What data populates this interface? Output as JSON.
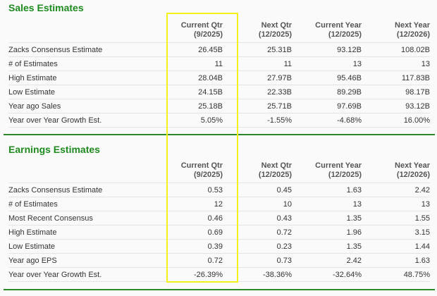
{
  "columns": [
    {
      "label": "Current Qtr",
      "period": "(9/2025)"
    },
    {
      "label": "Next Qtr",
      "period": "(12/2025)"
    },
    {
      "label": "Current Year",
      "period": "(12/2025)"
    },
    {
      "label": "Next Year",
      "period": "(12/2026)"
    }
  ],
  "sales": {
    "title": "Sales Estimates",
    "rows": [
      {
        "label": "Zacks Consensus Estimate",
        "values": [
          "26.45B",
          "25.31B",
          "93.12B",
          "108.02B"
        ]
      },
      {
        "label": "# of Estimates",
        "values": [
          "11",
          "11",
          "13",
          "13"
        ]
      },
      {
        "label": "High Estimate",
        "values": [
          "28.04B",
          "27.97B",
          "95.46B",
          "117.83B"
        ]
      },
      {
        "label": "Low Estimate",
        "values": [
          "24.15B",
          "22.33B",
          "89.29B",
          "98.17B"
        ]
      },
      {
        "label": "Year ago Sales",
        "values": [
          "25.18B",
          "25.71B",
          "97.69B",
          "93.12B"
        ]
      },
      {
        "label": "Year over Year Growth Est.",
        "values": [
          "5.05%",
          "-1.55%",
          "-4.68%",
          "16.00%"
        ]
      }
    ]
  },
  "earnings": {
    "title": "Earnings Estimates",
    "rows": [
      {
        "label": "Zacks Consensus Estimate",
        "values": [
          "0.53",
          "0.45",
          "1.63",
          "2.42"
        ]
      },
      {
        "label": "# of Estimates",
        "values": [
          "12",
          "10",
          "13",
          "13"
        ]
      },
      {
        "label": "Most Recent Consensus",
        "values": [
          "0.46",
          "0.43",
          "1.35",
          "1.55"
        ]
      },
      {
        "label": "High Estimate",
        "values": [
          "0.69",
          "0.72",
          "1.96",
          "3.15"
        ]
      },
      {
        "label": "Low Estimate",
        "values": [
          "0.39",
          "0.23",
          "1.35",
          "1.44"
        ]
      },
      {
        "label": "Year ago EPS",
        "values": [
          "0.72",
          "0.73",
          "2.42",
          "1.63"
        ]
      },
      {
        "label": "Year over Year Growth Est.",
        "values": [
          "-26.39%",
          "-38.36%",
          "-32.64%",
          "48.75%"
        ]
      }
    ]
  },
  "colors": {
    "accent": "#1f8a1f",
    "highlight": "#f2f21a"
  }
}
